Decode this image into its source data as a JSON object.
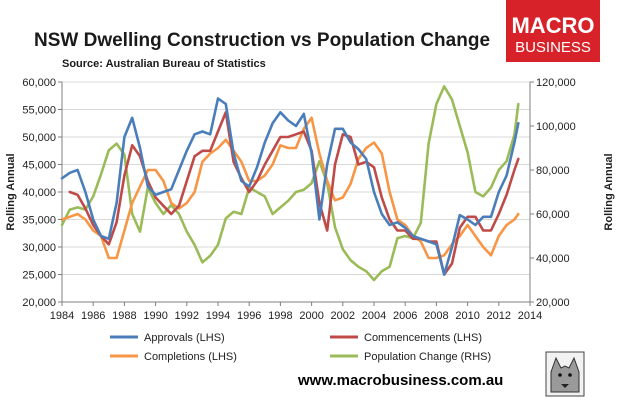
{
  "chart_data": {
    "type": "line",
    "title": "NSW Dwelling Construction vs Population Change",
    "subtitle": "Source: Australian Bureau of Statistics",
    "ylabel_left": "Rolling Annual",
    "ylabel_right": "Rolling Annual",
    "ylim_left": [
      20000,
      60000
    ],
    "ylim_right": [
      20000,
      120000
    ],
    "yticks_left": [
      "20,000",
      "25,000",
      "30,000",
      "35,000",
      "40,000",
      "45,000",
      "50,000",
      "55,000",
      "60,000"
    ],
    "yticks_right": [
      "20,000",
      "40,000",
      "60,000",
      "80,000",
      "100,000",
      "120,000"
    ],
    "xlim": [
      1984,
      2014
    ],
    "xticks": [
      "1984",
      "1986",
      "1988",
      "1990",
      "1992",
      "1994",
      "1996",
      "1998",
      "2000",
      "2002",
      "2004",
      "2006",
      "2008",
      "2010",
      "2012",
      "2014"
    ],
    "grid": true,
    "legend_position": "bottom",
    "series": [
      {
        "name": "Approvals (LHS)",
        "axis": "left",
        "color": "#4a7ebb",
        "x": [
          1984.0,
          1984.5,
          1985.0,
          1985.5,
          1986.0,
          1986.5,
          1987.0,
          1987.5,
          1988.0,
          1988.5,
          1989.0,
          1989.5,
          1990.0,
          1990.5,
          1991.0,
          1991.5,
          1992.0,
          1992.5,
          1993.0,
          1993.5,
          1994.0,
          1994.5,
          1995.0,
          1995.5,
          1996.0,
          1996.5,
          1997.0,
          1997.5,
          1998.0,
          1998.5,
          1999.0,
          1999.5,
          2000.0,
          2000.5,
          2001.0,
          2001.5,
          2002.0,
          2002.5,
          2003.0,
          2003.5,
          2004.0,
          2004.5,
          2005.0,
          2005.5,
          2006.0,
          2006.5,
          2007.0,
          2007.5,
          2008.0,
          2008.5,
          2009.0,
          2009.5,
          2010.0,
          2010.5,
          2011.0,
          2011.5,
          2012.0,
          2012.5,
          2013.0,
          2013.25
        ],
        "values": [
          42500,
          43500,
          44000,
          40000,
          35000,
          32000,
          31500,
          38000,
          50000,
          53500,
          48000,
          41000,
          39500,
          40000,
          40500,
          44000,
          47500,
          50500,
          51000,
          50500,
          57000,
          56000,
          47000,
          42000,
          41000,
          44500,
          49000,
          52500,
          54500,
          53000,
          52000,
          54200,
          47000,
          35000,
          45000,
          51500,
          51500,
          49000,
          47800,
          46000,
          40000,
          36000,
          34000,
          34500,
          33500,
          32000,
          31500,
          31000,
          30500,
          25000,
          30000,
          35800,
          35000,
          34000,
          35500,
          35500,
          40000,
          43000,
          49000,
          52500
        ]
      },
      {
        "name": "Commencements (LHS)",
        "axis": "left",
        "color": "#be4b48",
        "x": [
          1984.5,
          1985.0,
          1985.5,
          1986.0,
          1986.5,
          1987.0,
          1987.5,
          1988.0,
          1988.5,
          1989.0,
          1989.5,
          1990.0,
          1990.5,
          1991.0,
          1991.5,
          1992.0,
          1992.5,
          1993.0,
          1993.5,
          1994.0,
          1994.5,
          1995.0,
          1995.5,
          1996.0,
          1996.5,
          1997.0,
          1997.5,
          1998.0,
          1998.5,
          1999.0,
          1999.5,
          2000.0,
          2000.5,
          2001.0,
          2001.5,
          2002.0,
          2002.5,
          2003.0,
          2003.5,
          2004.0,
          2004.5,
          2005.0,
          2005.5,
          2006.0,
          2006.5,
          2007.0,
          2007.5,
          2008.0,
          2008.5,
          2009.0,
          2009.5,
          2010.0,
          2010.5,
          2011.0,
          2011.5,
          2012.0,
          2012.5,
          2013.0,
          2013.25
        ],
        "values": [
          40000,
          39500,
          37000,
          34000,
          32000,
          30500,
          34500,
          43000,
          48500,
          46500,
          42000,
          39000,
          37500,
          36000,
          37500,
          42000,
          46500,
          47500,
          47500,
          51000,
          54500,
          45500,
          42500,
          40000,
          42000,
          45000,
          47500,
          50000,
          50000,
          50500,
          51000,
          47500,
          38000,
          33000,
          45000,
          50500,
          50000,
          45000,
          45500,
          44500,
          39000,
          35000,
          33000,
          33000,
          31500,
          31500,
          31000,
          31000,
          25000,
          27000,
          33500,
          35500,
          35500,
          33000,
          33000,
          36000,
          39500,
          44000,
          46000
        ]
      },
      {
        "name": "Completions (LHS)",
        "axis": "left",
        "color": "#f79646",
        "x": [
          1984.0,
          1984.5,
          1985.0,
          1985.5,
          1986.0,
          1986.5,
          1987.0,
          1987.5,
          1988.0,
          1988.5,
          1989.0,
          1989.5,
          1990.0,
          1990.5,
          1991.0,
          1991.5,
          1992.0,
          1992.5,
          1993.0,
          1993.5,
          1994.0,
          1994.5,
          1995.0,
          1995.5,
          1996.0,
          1996.5,
          1997.0,
          1997.5,
          1998.0,
          1998.5,
          1999.0,
          1999.5,
          2000.0,
          2000.5,
          2001.0,
          2001.5,
          2002.0,
          2002.5,
          2003.0,
          2003.5,
          2004.0,
          2004.5,
          2005.0,
          2005.5,
          2006.0,
          2006.5,
          2007.0,
          2007.5,
          2008.0,
          2008.5,
          2009.0,
          2009.5,
          2010.0,
          2010.5,
          2011.0,
          2011.5,
          2012.0,
          2012.5,
          2013.0,
          2013.25
        ],
        "values": [
          35000,
          35500,
          36000,
          35000,
          33000,
          32000,
          28000,
          28000,
          33000,
          38000,
          41000,
          44000,
          44000,
          42000,
          38000,
          37000,
          38000,
          40000,
          45500,
          47000,
          48000,
          49500,
          47500,
          45500,
          42000,
          42000,
          43000,
          45000,
          48500,
          48000,
          48000,
          51500,
          53500,
          47000,
          42000,
          38500,
          39000,
          41500,
          46000,
          48000,
          49000,
          47000,
          40000,
          35000,
          34000,
          32000,
          31000,
          28000,
          28000,
          28500,
          30500,
          32000,
          34000,
          32000,
          30000,
          28500,
          32000,
          34000,
          35000,
          36000
        ]
      },
      {
        "name": "Population Change (RHS)",
        "axis": "right",
        "color": "#9bbb59",
        "x": [
          1984.0,
          1984.5,
          1985.0,
          1985.5,
          1986.0,
          1986.5,
          1987.0,
          1987.5,
          1988.0,
          1988.5,
          1989.0,
          1989.5,
          1990.0,
          1990.5,
          1991.0,
          1991.5,
          1992.0,
          1992.5,
          1993.0,
          1993.5,
          1994.0,
          1994.5,
          1995.0,
          1995.5,
          1996.0,
          1996.5,
          1997.0,
          1997.5,
          1998.0,
          1998.5,
          1999.0,
          1999.5,
          2000.0,
          2000.5,
          2001.0,
          2001.5,
          2002.0,
          2002.5,
          2003.0,
          2003.5,
          2004.0,
          2004.5,
          2005.0,
          2005.5,
          2006.0,
          2006.5,
          2007.0,
          2007.5,
          2008.0,
          2008.5,
          2009.0,
          2009.5,
          2010.0,
          2010.5,
          2011.0,
          2011.5,
          2012.0,
          2012.5,
          2013.0,
          2013.25
        ],
        "values": [
          55000,
          62000,
          63000,
          62000,
          68000,
          78000,
          89000,
          92000,
          87000,
          60000,
          52000,
          72000,
          65000,
          60000,
          64000,
          60000,
          52000,
          46000,
          38000,
          41000,
          46000,
          58000,
          61000,
          60000,
          72000,
          70000,
          68000,
          60000,
          63000,
          66000,
          70000,
          71000,
          74000,
          84000,
          74000,
          54000,
          44000,
          39000,
          36000,
          34000,
          30000,
          34000,
          36000,
          49000,
          50000,
          49000,
          56000,
          92000,
          110000,
          118000,
          112000,
          100000,
          88000,
          70000,
          68000,
          72000,
          80000,
          84000,
          96000,
          110000
        ]
      }
    ]
  },
  "branding": {
    "logo_line1": "MACRO",
    "logo_line2": "BUSINESS",
    "logo_color": "#d7222a",
    "url": "www.macrobusiness.com.au",
    "mascot_icon": "wolf-icon"
  }
}
